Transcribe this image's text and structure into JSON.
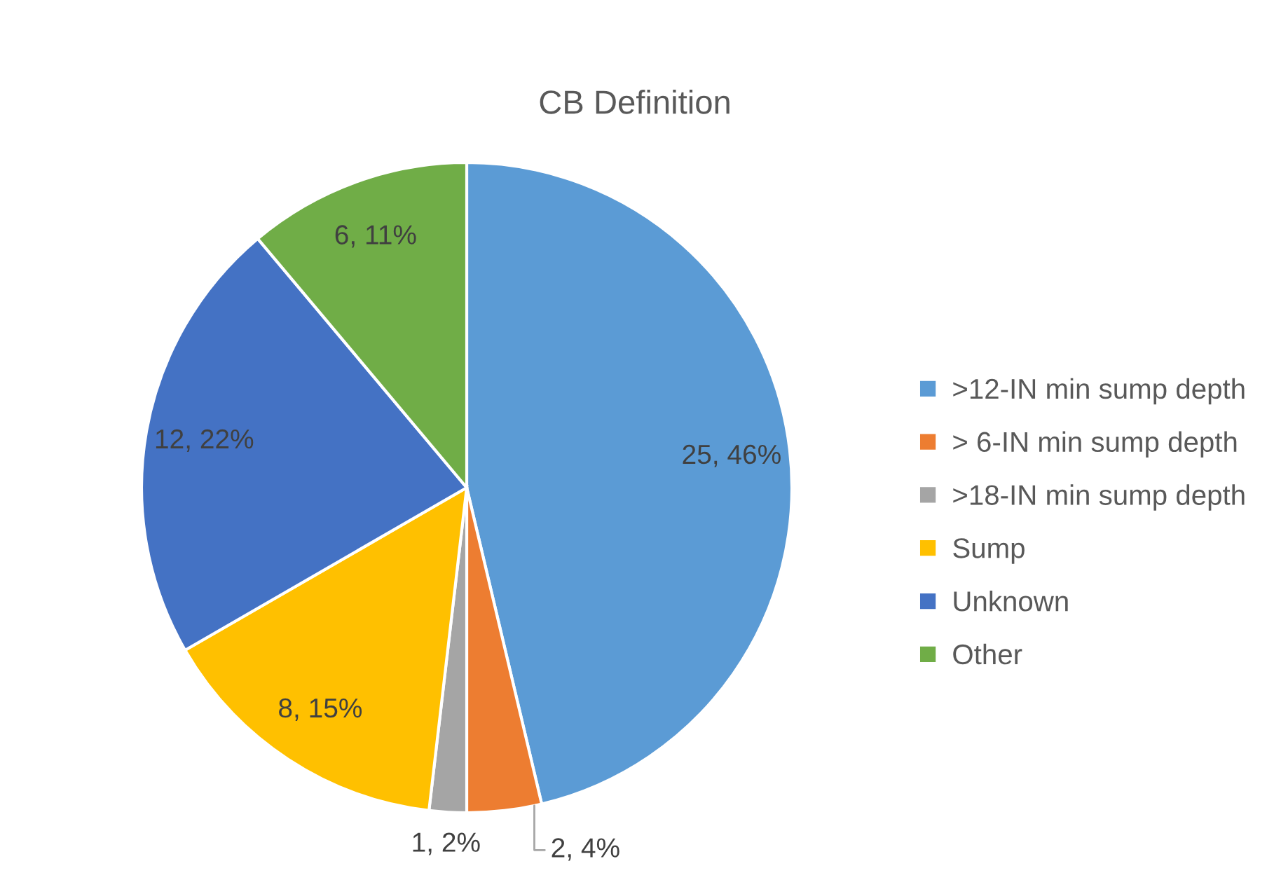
{
  "chart_data": {
    "type": "pie",
    "title": "CB Definition",
    "categories": [
      ">12-IN min sump depth",
      "> 6-IN min sump depth",
      ">18-IN min sump depth",
      "Sump",
      "Unknown",
      "Other"
    ],
    "values": [
      25,
      2,
      1,
      8,
      12,
      6
    ],
    "colors": [
      "#5b9bd5",
      "#ed7d31",
      "#a5a5a5",
      "#ffc000",
      "#4472c4",
      "#70ad47"
    ],
    "value_labels": [
      "25, 46%",
      "2, 4%",
      "1, 2%",
      "8, 15%",
      "12, 22%",
      "6, 11%"
    ],
    "legend": "right"
  }
}
